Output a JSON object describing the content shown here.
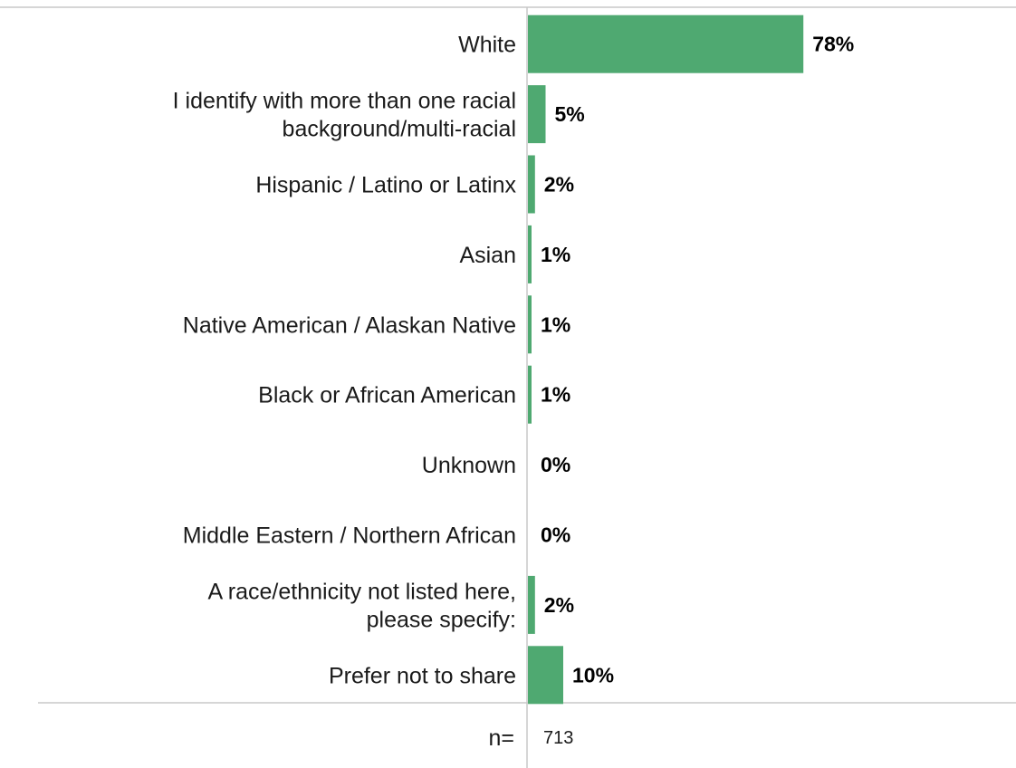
{
  "chart_data": {
    "type": "bar",
    "orientation": "horizontal",
    "categories": [
      [
        "White"
      ],
      [
        "I identify with more than one racial",
        "background/multi-racial"
      ],
      [
        "Hispanic / Latino or Latinx"
      ],
      [
        "Asian"
      ],
      [
        "Native American / Alaskan Native"
      ],
      [
        "Black or African American"
      ],
      [
        "Unknown"
      ],
      [
        "Middle Eastern / Northern African"
      ],
      [
        "A race/ethnicity not listed here,",
        "please specify:"
      ],
      [
        "Prefer not to share"
      ]
    ],
    "values": [
      78,
      5,
      2,
      1,
      1,
      1,
      0,
      0,
      2,
      10
    ],
    "value_labels": [
      "78%",
      "5%",
      "2%",
      "1%",
      "1%",
      "1%",
      "0%",
      "0%",
      "2%",
      "10%"
    ],
    "xlim": [
      0,
      100
    ],
    "grid": false,
    "colors": {
      "bar": "#4fa971",
      "axis": "#c8c8c8"
    },
    "footer": {
      "label": "n=",
      "value": "713"
    }
  }
}
